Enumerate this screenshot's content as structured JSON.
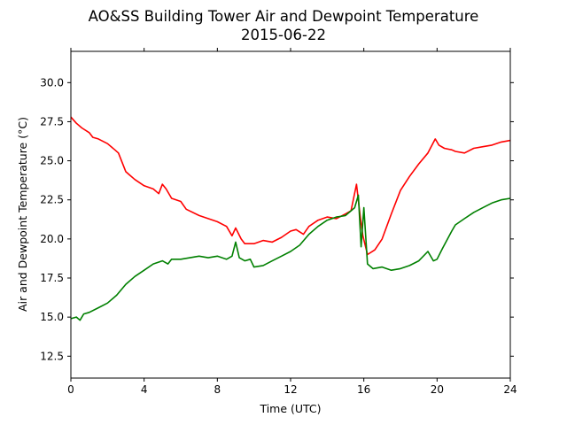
{
  "chart_data": {
    "type": "line",
    "title": "AO&SS Building Tower Air and Dewpoint Temperature",
    "subtitle": "2015-06-22",
    "xlabel": "Time (UTC)",
    "ylabel": "Air and Dewpoint Temperature (°C)",
    "xlim": [
      0,
      24
    ],
    "ylim": [
      11.1,
      32.0
    ],
    "xticks": [
      0,
      4,
      8,
      12,
      16,
      20,
      24
    ],
    "yticks": [
      12.5,
      15.0,
      17.5,
      20.0,
      22.5,
      25.0,
      27.5,
      30.0
    ],
    "ytick_labels": [
      "12.5",
      "15.0",
      "17.5",
      "20.0",
      "22.5",
      "25.0",
      "27.5",
      "30.0"
    ],
    "grid": false,
    "series": [
      {
        "color": "#ff0000",
        "x": [
          0,
          0.3,
          0.6,
          1.0,
          1.2,
          1.5,
          2.0,
          2.4,
          2.6,
          3.0,
          3.2,
          3.5,
          4.0,
          4.5,
          4.8,
          5.0,
          5.2,
          5.5,
          6.0,
          6.3,
          7.0,
          7.5,
          8.0,
          8.5,
          8.8,
          9.0,
          9.3,
          9.5,
          10.0,
          10.5,
          11.0,
          11.5,
          12.0,
          12.3,
          12.7,
          13.0,
          13.5,
          14.0,
          14.5,
          15.0,
          15.3,
          15.6,
          15.8,
          15.95,
          16.2,
          16.6,
          17.0,
          17.5,
          18.0,
          18.5,
          19.0,
          19.5,
          19.9,
          20.1,
          20.4,
          20.8,
          21.0,
          21.5,
          22.0,
          22.5,
          23.0,
          23.5,
          24.0
        ],
        "y": [
          27.8,
          27.4,
          27.1,
          26.8,
          26.5,
          26.4,
          26.1,
          25.7,
          25.5,
          24.3,
          24.1,
          23.8,
          23.4,
          23.2,
          22.9,
          23.5,
          23.2,
          22.6,
          22.4,
          21.9,
          21.5,
          21.3,
          21.1,
          20.8,
          20.2,
          20.7,
          20.0,
          19.7,
          19.7,
          19.9,
          19.8,
          20.1,
          20.5,
          20.6,
          20.3,
          20.8,
          21.2,
          21.4,
          21.3,
          21.6,
          21.8,
          23.5,
          21.5,
          20.2,
          19.0,
          19.3,
          20.0,
          21.6,
          23.1,
          24.0,
          24.8,
          25.5,
          26.4,
          26.0,
          25.8,
          25.7,
          25.6,
          25.5,
          25.8,
          25.9,
          26.0,
          26.2,
          26.3
        ]
      },
      {
        "color": "#008000",
        "x": [
          0,
          0.3,
          0.5,
          0.7,
          1.0,
          1.5,
          2.0,
          2.5,
          3.0,
          3.5,
          4.0,
          4.5,
          5.0,
          5.3,
          5.5,
          6.0,
          6.5,
          7.0,
          7.5,
          8.0,
          8.5,
          8.8,
          9.0,
          9.2,
          9.5,
          9.8,
          10.0,
          10.5,
          11.0,
          11.5,
          12.0,
          12.5,
          13.0,
          13.5,
          14.0,
          14.5,
          15.0,
          15.5,
          15.7,
          15.85,
          16.0,
          16.2,
          16.5,
          17.0,
          17.5,
          18.0,
          18.5,
          19.0,
          19.5,
          19.8,
          20.0,
          20.3,
          20.8,
          21.0,
          21.5,
          22.0,
          22.5,
          23.0,
          23.5,
          24.0
        ],
        "y": [
          14.9,
          15.0,
          14.8,
          15.2,
          15.3,
          15.6,
          15.9,
          16.4,
          17.1,
          17.6,
          18.0,
          18.4,
          18.6,
          18.4,
          18.7,
          18.7,
          18.8,
          18.9,
          18.8,
          18.9,
          18.7,
          18.9,
          19.8,
          18.8,
          18.6,
          18.7,
          18.2,
          18.3,
          18.6,
          18.9,
          19.2,
          19.6,
          20.3,
          20.8,
          21.2,
          21.4,
          21.5,
          22.0,
          22.8,
          19.5,
          22.0,
          18.4,
          18.1,
          18.2,
          18.0,
          18.1,
          18.3,
          18.6,
          19.2,
          18.6,
          18.7,
          19.4,
          20.5,
          20.9,
          21.3,
          21.7,
          22.0,
          22.3,
          22.5,
          22.6
        ]
      }
    ]
  }
}
